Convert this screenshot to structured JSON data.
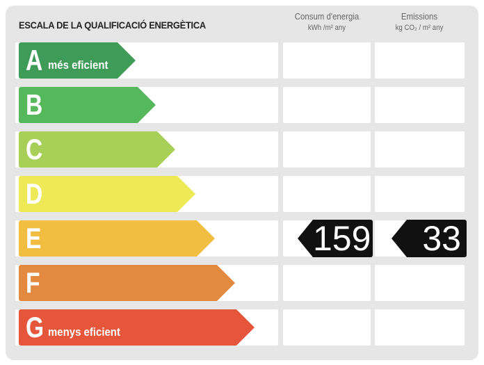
{
  "title": "ESCALA DE LA QUALIFICACIÓ ENERGÈTICA",
  "columns": {
    "consum": {
      "label": "Consum d'energia",
      "unit": "kWh /m² any"
    },
    "emissions": {
      "label": "Emissions",
      "unit": "kg CO₂ / m² any"
    }
  },
  "ratings": [
    {
      "letter": "A",
      "desc": "més eficient",
      "color": "#3f9c58"
    },
    {
      "letter": "B",
      "desc": "",
      "color": "#55b85a"
    },
    {
      "letter": "C",
      "desc": "",
      "color": "#a8cf57"
    },
    {
      "letter": "D",
      "desc": "",
      "color": "#eee956"
    },
    {
      "letter": "E",
      "desc": "",
      "color": "#f1be42"
    },
    {
      "letter": "F",
      "desc": "",
      "color": "#e38a40"
    },
    {
      "letter": "G",
      "desc": "menys eficient",
      "color": "#e5563b"
    }
  ],
  "result": {
    "rating": "E",
    "consum": "159",
    "emissions": "33"
  }
}
